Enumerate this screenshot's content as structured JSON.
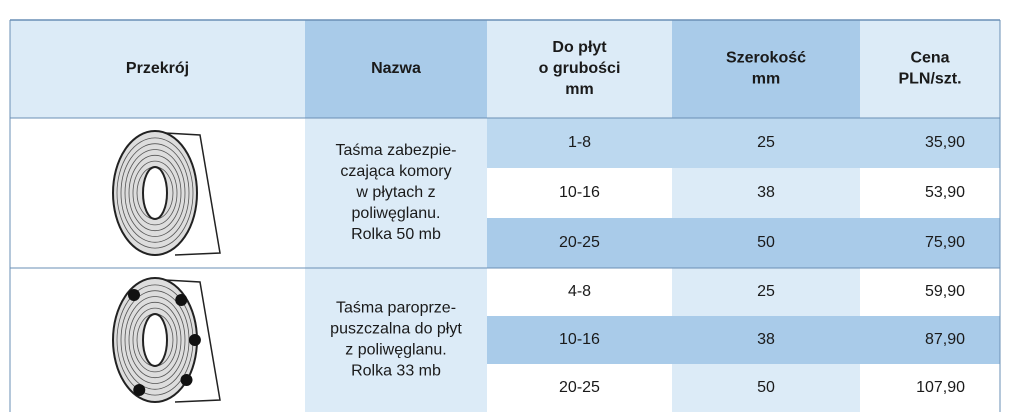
{
  "table": {
    "headers": [
      [
        "Przekrój"
      ],
      [
        "Nazwa"
      ],
      [
        "Do płyt",
        "o grubości",
        "mm"
      ],
      [
        "Szerokość",
        "mm"
      ],
      [
        "Cena",
        "PLN/szt."
      ]
    ],
    "groups": [
      {
        "name": [
          "Taśma zabezpie-",
          "czająca komory",
          "w płytach z",
          "poliwęglanu.",
          "Rolka 50 mb"
        ],
        "rows": [
          [
            "1-8",
            "25",
            "35,90"
          ],
          [
            "10-16",
            "38",
            "53,90"
          ],
          [
            "20-25",
            "50",
            "75,90"
          ]
        ]
      },
      {
        "name": [
          "Taśma paroprze-",
          "puszczalna do płyt",
          "z poliwęglanu.",
          "Rolka 33 mb"
        ],
        "rows": [
          [
            "4-8",
            "25",
            "59,90"
          ],
          [
            "10-16",
            "38",
            "87,90"
          ],
          [
            "20-25",
            "50",
            "107,90"
          ]
        ]
      }
    ]
  }
}
